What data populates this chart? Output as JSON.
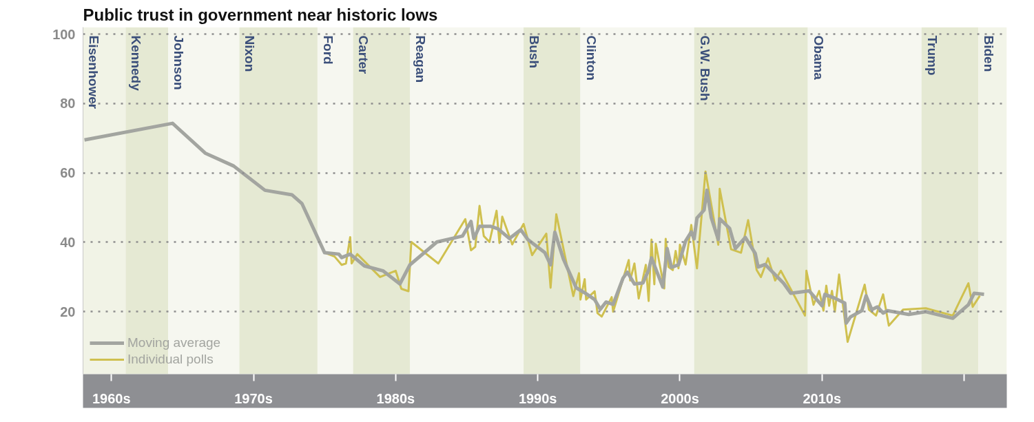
{
  "chart_data": {
    "type": "line",
    "title": "Public trust in government near historic lows",
    "xlim": [
      1958,
      2023
    ],
    "ylim": [
      2,
      102
    ],
    "yticks": [
      20,
      40,
      60,
      80,
      100
    ],
    "xticks": [
      {
        "value": 1960,
        "label": "1960s"
      },
      {
        "value": 1970,
        "label": "1970s"
      },
      {
        "value": 1980,
        "label": "1980s"
      },
      {
        "value": 1990,
        "label": "1990s"
      },
      {
        "value": 2000,
        "label": "2000s"
      },
      {
        "value": 2010,
        "label": "2010s"
      },
      {
        "value": 2020,
        "label": null
      }
    ],
    "grid": "y",
    "legend": "bottom left",
    "series": [
      {
        "name": "Moving average",
        "color": "#a3a5a0",
        "x": [
          1958.1,
          1964.3,
          1966.6,
          1968.6,
          1970.8,
          1972.7,
          1973.4,
          1975.0,
          1976.0,
          1976.2,
          1976.8,
          1977.8,
          1979.1,
          1980.3,
          1981.0,
          1982.9,
          1984.7,
          1985.3,
          1985.5,
          1985.9,
          1986.7,
          1987.2,
          1988.0,
          1988.8,
          1989.3,
          1990.5,
          1990.9,
          1991.2,
          1991.8,
          1992.7,
          1993.4,
          1994.0,
          1994.4,
          1994.8,
          1995.3,
          1996.0,
          1996.3,
          1996.8,
          1997.4,
          1997.8,
          1998.0,
          1998.8,
          1999.1,
          1999.4,
          1999.9,
          2000.4,
          2000.8,
          2001.0,
          2001.2,
          2001.7,
          2001.9,
          2002.2,
          2002.7,
          2002.8,
          2003.5,
          2003.9,
          2004.6,
          2005.3,
          2005.5,
          2006.0,
          2007.3,
          2007.8,
          2009.1,
          2010.0,
          2010.2,
          2010.9,
          2011.6,
          2011.7,
          2012.0,
          2012.8,
          2013.1,
          2013.5,
          2013.9,
          2014.3,
          2014.6,
          2016.1,
          2017.3,
          2019.2,
          2020.3,
          2020.7,
          2021.4
        ],
        "values": [
          69.5,
          74.3,
          65.7,
          62,
          55,
          53.7,
          51.2,
          37,
          36.6,
          35.6,
          36.6,
          33.2,
          31.8,
          28,
          33.5,
          40.1,
          41.8,
          46,
          41.1,
          44.6,
          44.6,
          43.9,
          41.1,
          43.6,
          40.8,
          37,
          33.5,
          42.9,
          35.2,
          26.9,
          25.2,
          23.5,
          20.7,
          22.8,
          22.1,
          29.7,
          31.4,
          28,
          28.3,
          32,
          35.5,
          27.1,
          38.2,
          32.8,
          33.5,
          40.4,
          43,
          41,
          47,
          49.3,
          55,
          47.2,
          40.8,
          46.8,
          44,
          38.2,
          41.4,
          36.8,
          32.9,
          33.6,
          28.2,
          25.3,
          26,
          21.7,
          25,
          23.9,
          22.5,
          16.7,
          18.5,
          20.3,
          24.6,
          20.6,
          21.4,
          19.6,
          20.3,
          19.2,
          20,
          18.1,
          22,
          25.3,
          25
        ]
      },
      {
        "name": "Individual polls",
        "color": "#cfc04f",
        "x": [
          1975.0,
          1975.7,
          1976.2,
          1976.5,
          1976.8,
          1976.9,
          1977.3,
          1978.9,
          1980.0,
          1980.4,
          1980.9,
          1981.1,
          1983.0,
          1984.9,
          1985.3,
          1985.6,
          1985.9,
          1986.2,
          1986.6,
          1987.1,
          1987.3,
          1987.5,
          1988.2,
          1989.0,
          1989.6,
          1990.6,
          1990.9,
          1991.3,
          1992.5,
          1992.9,
          1993.0,
          1993.3,
          1993.4,
          1994.0,
          1994.2,
          1994.5,
          1995.2,
          1995.3,
          1996.4,
          1996.5,
          1996.8,
          1997.1,
          1997.6,
          1997.8,
          1998.0,
          1998.2,
          1998.3,
          1998.9,
          1999.0,
          1999.2,
          1999.5,
          1999.7,
          1999.9,
          2000.0,
          2000.4,
          2000.8,
          2001.2,
          2001.8,
          2002.7,
          2002.8,
          2003.6,
          2004.3,
          2004.8,
          2005.4,
          2005.7,
          2006.2,
          2006.7,
          2007.1,
          2008.8,
          2008.9,
          2009.4,
          2009.8,
          2010.1,
          2010.3,
          2010.5,
          2010.7,
          2010.9,
          2011.2,
          2011.8,
          2013.0,
          2013.3,
          2013.8,
          2014.3,
          2014.7,
          2015.7,
          2017.3,
          2019.2,
          2020.3,
          2020.6,
          2021.1
        ],
        "values": [
          37,
          35.9,
          33.5,
          33.9,
          41.5,
          33.9,
          36.6,
          30,
          31.8,
          26.6,
          25.9,
          40.1,
          33.9,
          46.7,
          37.7,
          38.7,
          50.5,
          41.8,
          40.1,
          49.1,
          39.8,
          47.4,
          39.4,
          45.3,
          36.3,
          42.5,
          26.9,
          48.1,
          24.5,
          31.1,
          23.5,
          29.4,
          23.5,
          25.9,
          19.6,
          18.6,
          24.2,
          20,
          34.9,
          29,
          33.9,
          23.8,
          33.5,
          23.1,
          40.8,
          27.9,
          39.6,
          26.7,
          41,
          32.9,
          32,
          37.5,
          32.5,
          39.3,
          33.6,
          45,
          32.5,
          60.4,
          39.3,
          55.4,
          38,
          37,
          46.4,
          32,
          30,
          35.4,
          29,
          31.8,
          18.9,
          31.8,
          22,
          26,
          20.3,
          27.5,
          21.7,
          26,
          20,
          30.7,
          11.3,
          27.8,
          20.6,
          18.9,
          25,
          16,
          20.6,
          21,
          18.9,
          28.2,
          21.4,
          24.6
        ]
      }
    ],
    "bands": [
      {
        "axis": "x",
        "from": 1958,
        "to": 1961,
        "label": "Eisenhower",
        "color": "#f1f3e6"
      },
      {
        "axis": "x",
        "from": 1961,
        "to": 1964,
        "label": "Kennedy",
        "color": "#e5e9d3"
      },
      {
        "axis": "x",
        "from": 1964,
        "to": 1969,
        "label": "Johnson",
        "color": "#f6f7f0"
      },
      {
        "axis": "x",
        "from": 1969,
        "to": 1974.5,
        "label": "Nixon",
        "color": "#e5e9d3"
      },
      {
        "axis": "x",
        "from": 1974.5,
        "to": 1977,
        "label": "Ford",
        "color": "#f6f7f0"
      },
      {
        "axis": "x",
        "from": 1977,
        "to": 1981,
        "label": "Carter",
        "color": "#e5e9d3"
      },
      {
        "axis": "x",
        "from": 1981,
        "to": 1989,
        "label": "Reagan",
        "color": "#f6f7f0"
      },
      {
        "axis": "x",
        "from": 1989,
        "to": 1993,
        "label": "Bush",
        "color": "#e5e9d3"
      },
      {
        "axis": "x",
        "from": 1993,
        "to": 2001,
        "label": "Clinton",
        "color": "#f6f7f0"
      },
      {
        "axis": "x",
        "from": 2001,
        "to": 2009,
        "label": "G.W. Bush",
        "color": "#e5e9d3"
      },
      {
        "axis": "x",
        "from": 2009,
        "to": 2017,
        "label": "Obama",
        "color": "#f6f7f0"
      },
      {
        "axis": "x",
        "from": 2017,
        "to": 2021,
        "label": "Trump",
        "color": "#e5e9d3"
      },
      {
        "axis": "x",
        "from": 2021,
        "to": 2023,
        "label": "Biden",
        "color": "#f2f4e8"
      }
    ]
  }
}
